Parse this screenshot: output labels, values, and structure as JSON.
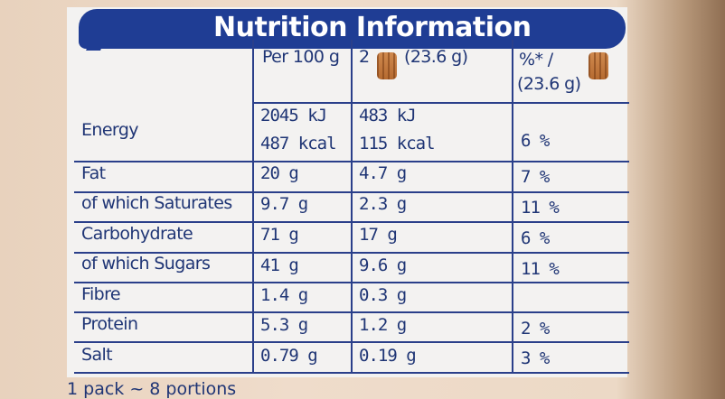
{
  "header": {
    "title": "Nutrition Information"
  },
  "columns": {
    "per100": "Per 100 g",
    "serving_prefix": "2",
    "serving_suffix": "(23.6 g)",
    "pct_line1": "%* /",
    "pct_line2": "(23.6 g)"
  },
  "rows": [
    {
      "label": "Energy",
      "per100": "2045 kJ",
      "per100_b": "487 kcal",
      "serving": "483 kJ",
      "serving_b": "115 kcal",
      "pct": "6 %"
    },
    {
      "label": "Fat",
      "per100": "20 g",
      "serving": "4.7 g",
      "pct": "7 %"
    },
    {
      "label": "of which Saturates",
      "per100": "9.7 g",
      "serving": "2.3 g",
      "pct": "11 %"
    },
    {
      "label": "Carbohydrate",
      "per100": "71 g",
      "serving": "17 g",
      "pct": "6 %"
    },
    {
      "label": "of which Sugars",
      "per100": "41 g",
      "serving": "9.6 g",
      "pct": "11 %"
    },
    {
      "label": "Fibre",
      "per100": "1.4 g",
      "serving": "0.3 g",
      "pct": ""
    },
    {
      "label": "Protein",
      "per100": "5.3 g",
      "serving": "1.2 g",
      "pct": "2 %"
    },
    {
      "label": "Salt",
      "per100": "0.79 g",
      "serving": "0.19 g",
      "pct": "3 %"
    }
  ],
  "footer": "1 pack ~ 8 portions",
  "icons": [
    "waffle-icon",
    "waffle-icon"
  ],
  "colors": {
    "header_bg": "#1f3d94",
    "text": "#1f3575",
    "panel": "#f3f2f1"
  }
}
